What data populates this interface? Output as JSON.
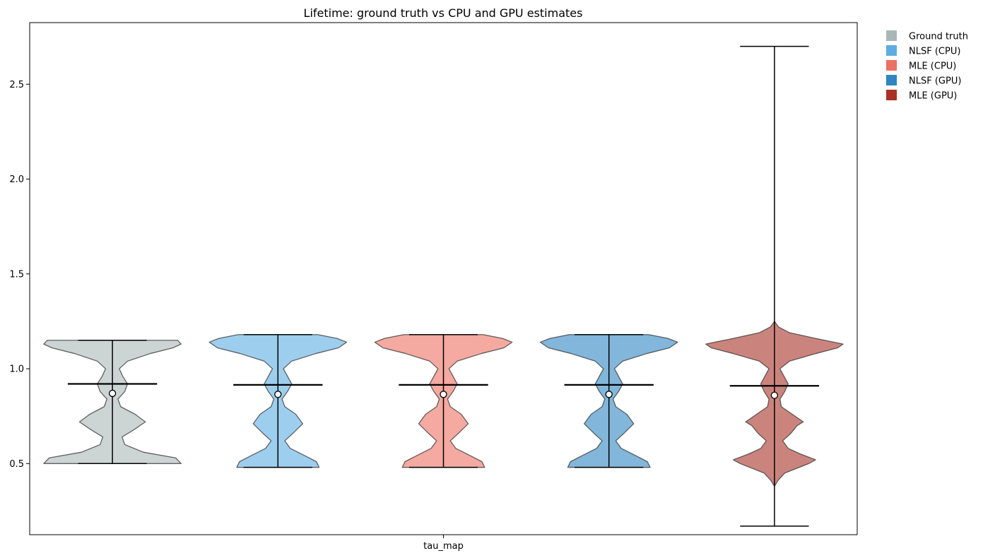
{
  "chart_data": {
    "type": "violin",
    "title": "Lifetime: ground truth vs CPU and GPU estimates",
    "xlabel": "",
    "ylabel": "",
    "categories": [
      "tau_map"
    ],
    "ylim": [
      0.125,
      2.825
    ],
    "yticks": [
      0.5,
      1.0,
      1.5,
      2.0,
      2.5
    ],
    "ytick_labels": [
      "0.5",
      "1.0",
      "1.5",
      "2.0",
      "2.5"
    ],
    "grid": false,
    "legend_position": "outside-top-right",
    "series": [
      {
        "name": "Ground truth",
        "color": "#aab7b8",
        "min": 0.5,
        "max": 1.15,
        "mean": 0.92,
        "median": 0.87,
        "density": [
          [
            0.5,
            1.0
          ],
          [
            0.53,
            0.92
          ],
          [
            0.56,
            0.45
          ],
          [
            0.6,
            0.18
          ],
          [
            0.64,
            0.14
          ],
          [
            0.68,
            0.32
          ],
          [
            0.72,
            0.48
          ],
          [
            0.76,
            0.33
          ],
          [
            0.8,
            0.12
          ],
          [
            0.84,
            0.08
          ],
          [
            0.88,
            0.18
          ],
          [
            0.92,
            0.22
          ],
          [
            0.96,
            0.15
          ],
          [
            1.0,
            0.1
          ],
          [
            1.04,
            0.22
          ],
          [
            1.08,
            0.55
          ],
          [
            1.11,
            0.88
          ],
          [
            1.13,
            1.0
          ],
          [
            1.15,
            0.95
          ]
        ]
      },
      {
        "name": "NLSF (CPU)",
        "color": "#5dade2",
        "min": 0.48,
        "max": 1.18,
        "mean": 0.915,
        "median": 0.865,
        "density": [
          [
            0.48,
            0.6
          ],
          [
            0.51,
            0.56
          ],
          [
            0.54,
            0.4
          ],
          [
            0.58,
            0.18
          ],
          [
            0.62,
            0.1
          ],
          [
            0.66,
            0.22
          ],
          [
            0.71,
            0.36
          ],
          [
            0.76,
            0.26
          ],
          [
            0.8,
            0.1
          ],
          [
            0.84,
            0.06
          ],
          [
            0.88,
            0.14
          ],
          [
            0.92,
            0.2
          ],
          [
            0.96,
            0.14
          ],
          [
            1.0,
            0.08
          ],
          [
            1.04,
            0.2
          ],
          [
            1.08,
            0.55
          ],
          [
            1.11,
            0.88
          ],
          [
            1.14,
            1.0
          ],
          [
            1.16,
            0.86
          ],
          [
            1.18,
            0.58
          ]
        ]
      },
      {
        "name": "MLE (CPU)",
        "color": "#ec7063",
        "min": 0.48,
        "max": 1.18,
        "mean": 0.915,
        "median": 0.865,
        "density": [
          [
            0.48,
            0.6
          ],
          [
            0.51,
            0.56
          ],
          [
            0.54,
            0.4
          ],
          [
            0.58,
            0.18
          ],
          [
            0.62,
            0.1
          ],
          [
            0.66,
            0.22
          ],
          [
            0.71,
            0.36
          ],
          [
            0.76,
            0.26
          ],
          [
            0.8,
            0.1
          ],
          [
            0.84,
            0.06
          ],
          [
            0.88,
            0.14
          ],
          [
            0.92,
            0.2
          ],
          [
            0.96,
            0.14
          ],
          [
            1.0,
            0.08
          ],
          [
            1.04,
            0.2
          ],
          [
            1.08,
            0.55
          ],
          [
            1.11,
            0.88
          ],
          [
            1.14,
            1.0
          ],
          [
            1.16,
            0.86
          ],
          [
            1.18,
            0.58
          ]
        ]
      },
      {
        "name": "NLSF (GPU)",
        "color": "#2e86c1",
        "min": 0.48,
        "max": 1.18,
        "mean": 0.915,
        "median": 0.865,
        "density": [
          [
            0.48,
            0.6
          ],
          [
            0.51,
            0.56
          ],
          [
            0.54,
            0.4
          ],
          [
            0.58,
            0.18
          ],
          [
            0.62,
            0.1
          ],
          [
            0.66,
            0.22
          ],
          [
            0.71,
            0.36
          ],
          [
            0.76,
            0.26
          ],
          [
            0.8,
            0.1
          ],
          [
            0.84,
            0.06
          ],
          [
            0.88,
            0.14
          ],
          [
            0.92,
            0.2
          ],
          [
            0.96,
            0.14
          ],
          [
            1.0,
            0.08
          ],
          [
            1.04,
            0.2
          ],
          [
            1.08,
            0.55
          ],
          [
            1.11,
            0.88
          ],
          [
            1.14,
            1.0
          ],
          [
            1.16,
            0.86
          ],
          [
            1.18,
            0.58
          ]
        ]
      },
      {
        "name": "MLE (GPU)",
        "color": "#a93226",
        "min": 0.17,
        "max": 2.7,
        "mean": 0.91,
        "median": 0.86,
        "density": [
          [
            0.38,
            0.0
          ],
          [
            0.41,
            0.05
          ],
          [
            0.45,
            0.15
          ],
          [
            0.5,
            0.5
          ],
          [
            0.52,
            0.6
          ],
          [
            0.55,
            0.38
          ],
          [
            0.58,
            0.2
          ],
          [
            0.62,
            0.12
          ],
          [
            0.66,
            0.24
          ],
          [
            0.7,
            0.33
          ],
          [
            0.72,
            0.42
          ],
          [
            0.76,
            0.26
          ],
          [
            0.8,
            0.1
          ],
          [
            0.84,
            0.08
          ],
          [
            0.88,
            0.15
          ],
          [
            0.92,
            0.2
          ],
          [
            0.96,
            0.14
          ],
          [
            1.0,
            0.08
          ],
          [
            1.04,
            0.22
          ],
          [
            1.08,
            0.6
          ],
          [
            1.11,
            0.92
          ],
          [
            1.13,
            1.0
          ],
          [
            1.16,
            0.6
          ],
          [
            1.19,
            0.22
          ],
          [
            1.22,
            0.06
          ],
          [
            1.25,
            0.0
          ]
        ]
      }
    ]
  }
}
